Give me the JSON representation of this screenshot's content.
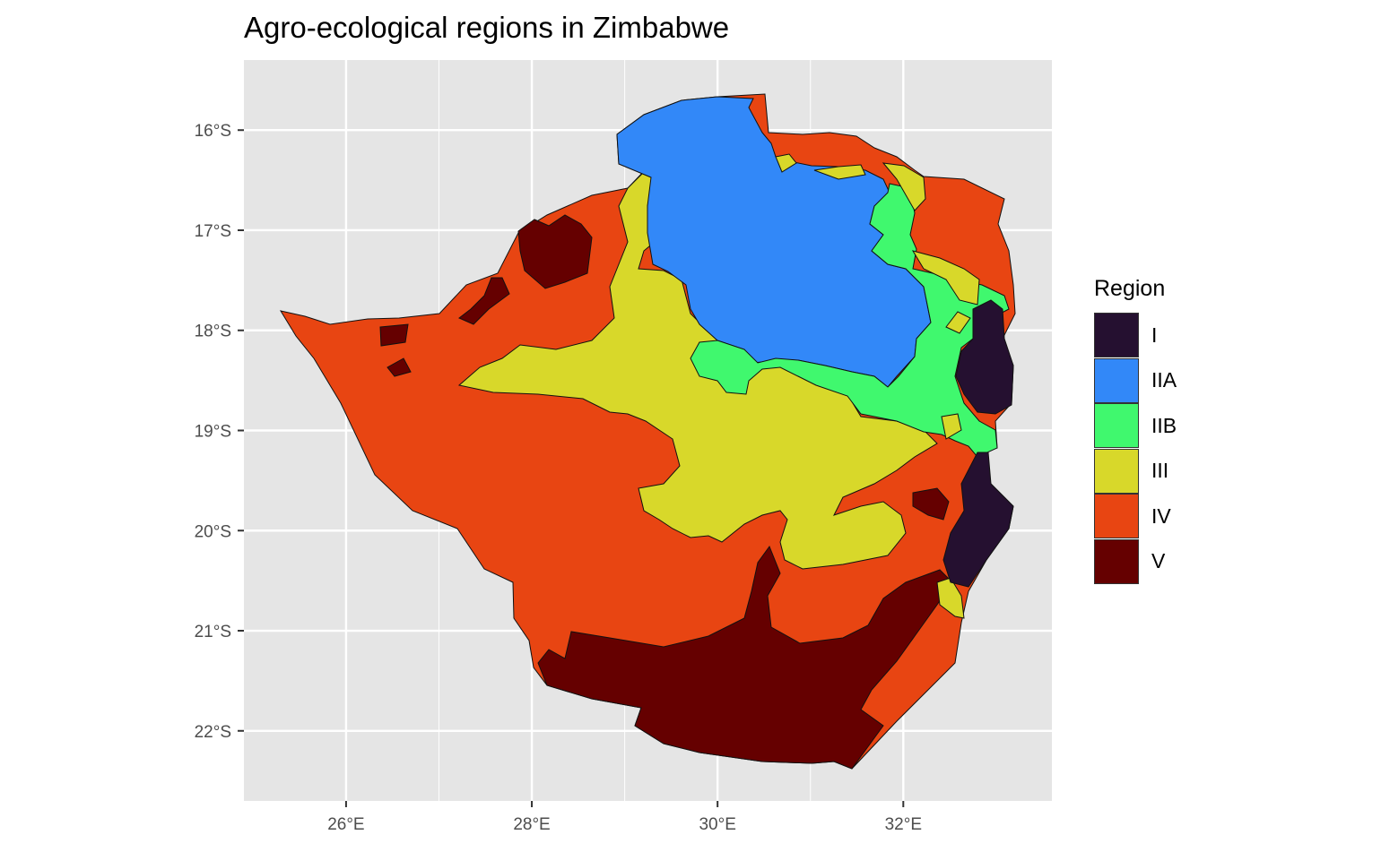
{
  "title": "Agro-ecological regions in Zimbabwe",
  "map": {
    "type": "choropleth",
    "x_ticks": [
      {
        "value": 26,
        "label": "26°E"
      },
      {
        "value": 28,
        "label": "28°E"
      },
      {
        "value": 30,
        "label": "30°E"
      },
      {
        "value": 32,
        "label": "32°E"
      }
    ],
    "y_ticks": [
      {
        "value": -16,
        "label": "16°S"
      },
      {
        "value": -17,
        "label": "17°S"
      },
      {
        "value": -18,
        "label": "18°S"
      },
      {
        "value": -19,
        "label": "19°S"
      },
      {
        "value": -20,
        "label": "20°S"
      },
      {
        "value": -21,
        "label": "21°S"
      },
      {
        "value": -22,
        "label": "22°S"
      }
    ],
    "xlim": [
      24.9,
      33.6
    ],
    "ylim": [
      -22.7,
      -15.3
    ],
    "background": "#e5e5e5",
    "grid_color": "#ffffff",
    "grid": true
  },
  "legend": {
    "title": "Region",
    "position": "right",
    "items": [
      {
        "label": "I",
        "color": "#251030"
      },
      {
        "label": "IIA",
        "color": "#3288f8"
      },
      {
        "label": "IIB",
        "color": "#40f86e"
      },
      {
        "label": "III",
        "color": "#d8d82a"
      },
      {
        "label": "IV",
        "color": "#e84512"
      },
      {
        "label": "V",
        "color": "#650000"
      }
    ]
  }
}
